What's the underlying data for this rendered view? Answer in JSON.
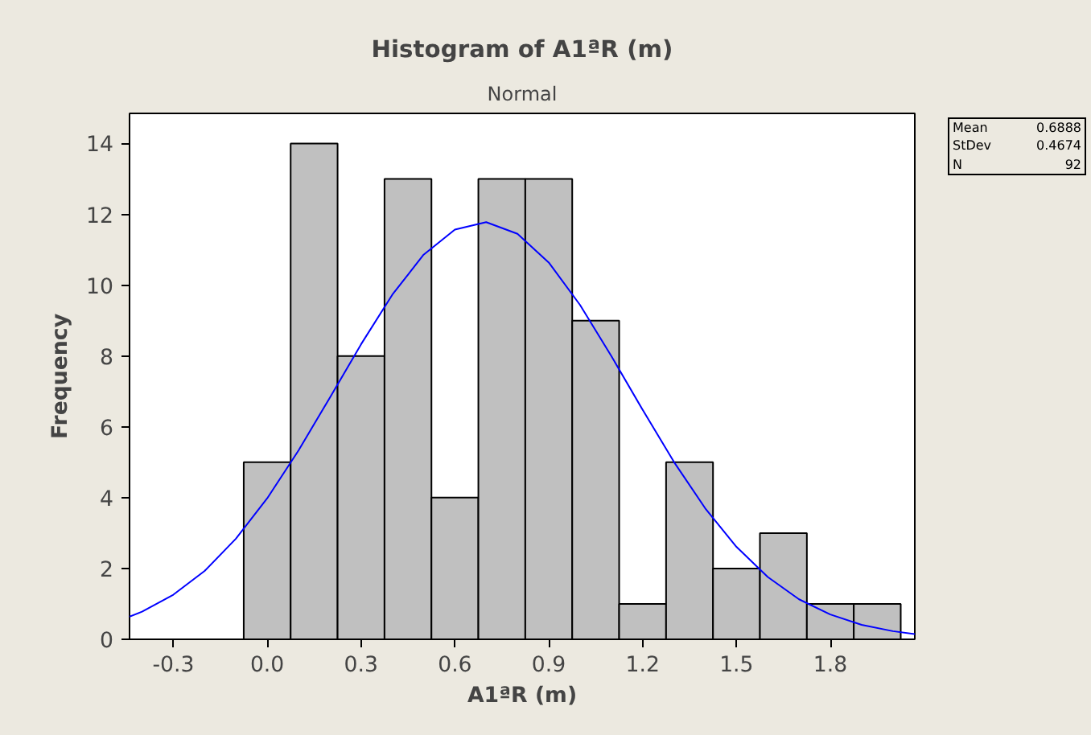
{
  "chart_data": {
    "type": "histogram",
    "title": "Histogram of A1ªR (m)",
    "subtitle": "Normal",
    "xlabel": "A1ªR (m)",
    "ylabel": "Frequency",
    "bins": [
      -0.075,
      0.075,
      0.225,
      0.375,
      0.525,
      0.675,
      0.825,
      0.975,
      1.125,
      1.275,
      1.425,
      1.575,
      1.725,
      1.875,
      2.025
    ],
    "values": [
      5,
      14,
      8,
      13,
      4,
      13,
      13,
      9,
      1,
      5,
      2,
      3,
      1,
      1
    ],
    "color": "#c0c0c0",
    "series": [
      {
        "type": "line",
        "color": "#0000ff",
        "x": [
          -0.44,
          -0.4,
          -0.3,
          -0.2,
          -0.1,
          0,
          0.1,
          0.2,
          0.3,
          0.4,
          0.5,
          0.6,
          0.7,
          0.8,
          0.9,
          1.0,
          1.1,
          1.2,
          1.3,
          1.4,
          1.5,
          1.6,
          1.7,
          1.8,
          1.9,
          2.0,
          2.07
        ],
        "values": [
          0.64,
          0.78,
          1.26,
          1.93,
          2.84,
          3.98,
          5.33,
          6.82,
          8.33,
          9.73,
          10.86,
          11.57,
          11.78,
          11.45,
          10.64,
          9.44,
          8.0,
          6.48,
          5.01,
          3.7,
          2.61,
          1.76,
          1.13,
          0.7,
          0.41,
          0.23,
          0.15
        ]
      }
    ],
    "xlim": [
      -0.44,
      2.07
    ],
    "ylim": [
      0,
      14.85
    ],
    "xticks": [
      -0.3,
      {
        "value": 0,
        "label": "0.0"
      },
      0.3,
      0.6,
      0.9,
      1.2,
      1.5,
      1.8
    ],
    "yticks": [
      0,
      2,
      4,
      6,
      8,
      10,
      12,
      14
    ],
    "annotations": [
      "Mean 0.6888",
      "StDev 0.4674",
      "N 92"
    ],
    "grid": false,
    "legend": false
  }
}
